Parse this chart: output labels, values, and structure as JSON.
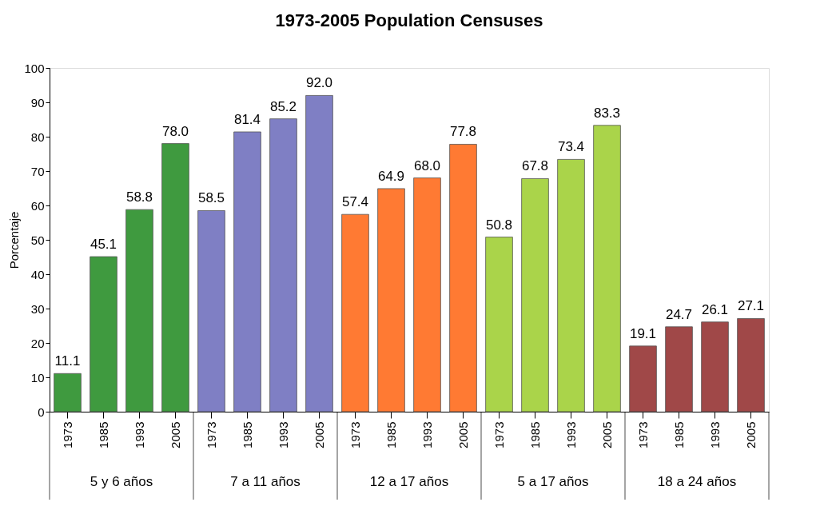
{
  "chart_data": {
    "type": "bar",
    "title": "1973-2005 Population Censuses",
    "ylabel": "Porcentaje",
    "categories": [
      "1973",
      "1985",
      "1993",
      "2005",
      "1973",
      "1985",
      "1993",
      "2005",
      "1973",
      "1985",
      "1993",
      "2005",
      "1973",
      "1985",
      "1993",
      "2005",
      "1973",
      "1985",
      "1993",
      "2005"
    ],
    "values": [
      11.1,
      45.1,
      58.8,
      78.0,
      58.5,
      81.4,
      85.2,
      92.0,
      57.4,
      64.9,
      68.0,
      77.8,
      50.8,
      67.8,
      73.4,
      83.3,
      19.1,
      24.7,
      26.1,
      27.1
    ],
    "value_labels": [
      "11.1",
      "45.1",
      "58.8",
      "78.0",
      "58.5",
      "81.4",
      "85.2",
      "92.0",
      "57.4",
      "64.9",
      "68.0",
      "77.8",
      "50.8",
      "67.8",
      "73.4",
      "83.3",
      "19.1",
      "24.7",
      "26.1",
      "27.1"
    ],
    "colors": [
      "#3f9a3f",
      "#3f9a3f",
      "#3f9a3f",
      "#3f9a3f",
      "#7f7fc4",
      "#7f7fc4",
      "#7f7fc4",
      "#7f7fc4",
      "#ff7a33",
      "#ff7a33",
      "#ff7a33",
      "#ff7a33",
      "#aad44a",
      "#aad44a",
      "#aad44a",
      "#aad44a",
      "#a04848",
      "#a04848",
      "#a04848",
      "#a04848"
    ],
    "annotations": [
      "5 y 6 años",
      "7 a 11 años",
      "12 a 17 años",
      "5 a 17 años",
      "18 a 24 años"
    ],
    "ylim": [
      0,
      100
    ],
    "yticks": [
      0,
      10,
      20,
      30,
      40,
      50,
      60,
      70,
      80,
      90,
      100
    ],
    "grid": false
  }
}
